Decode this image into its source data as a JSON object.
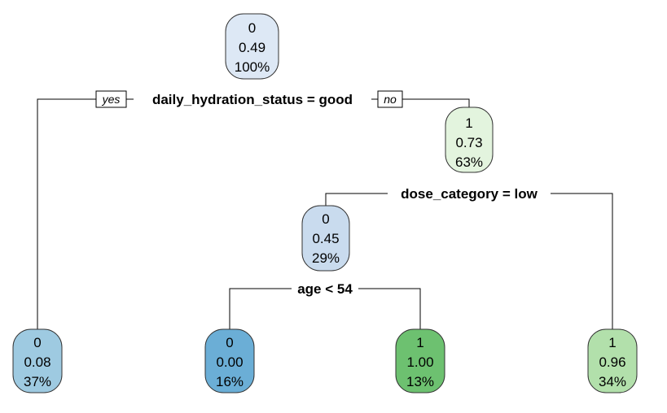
{
  "tree": {
    "branch_labels": {
      "yes": "yes",
      "no": "no"
    },
    "splits": {
      "root": "daily_hydration_status = good",
      "right": "dose_category = low",
      "middle": "age < 54"
    },
    "nodes": {
      "root": {
        "class": "0",
        "prob": "0.49",
        "pct": "100%",
        "color": "#dde8f5"
      },
      "right": {
        "class": "1",
        "prob": "0.73",
        "pct": "63%",
        "color": "#e3f4de"
      },
      "middle": {
        "class": "0",
        "prob": "0.45",
        "pct": "29%",
        "color": "#c9dbee"
      },
      "leaf1": {
        "class": "0",
        "prob": "0.08",
        "pct": "37%",
        "color": "#9ecae1"
      },
      "leaf2": {
        "class": "0",
        "prob": "0.00",
        "pct": "16%",
        "color": "#6baed6"
      },
      "leaf3": {
        "class": "1",
        "prob": "1.00",
        "pct": "13%",
        "color": "#6dc170"
      },
      "leaf4": {
        "class": "1",
        "prob": "0.96",
        "pct": "34%",
        "color": "#b2e0ab"
      }
    }
  }
}
